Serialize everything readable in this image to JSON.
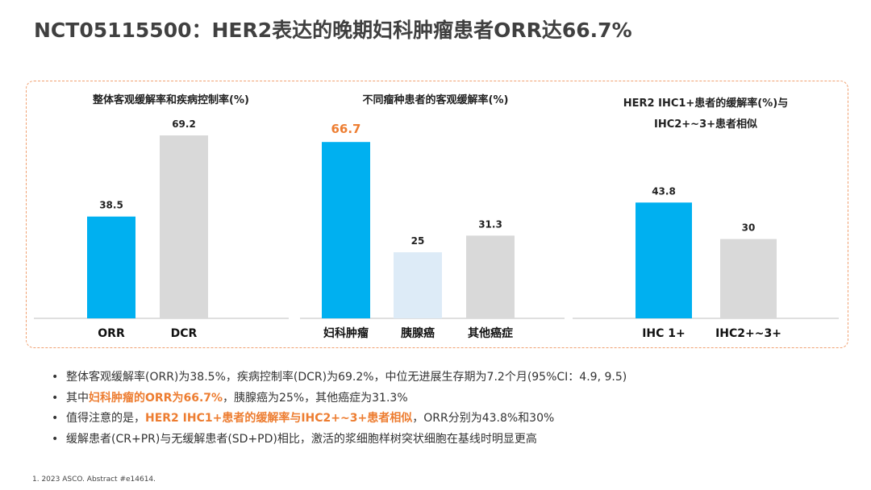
{
  "slide": {
    "title": "NCT05115500：HER2表达的晚期妇科肿瘤患者ORR达66.7%"
  },
  "colors": {
    "blue": "#00b0f0",
    "gray": "#d9d9d9",
    "light_blue": "#ddebf7",
    "orange": "#ed7d31",
    "frame": "#f0a070"
  },
  "chart_data": [
    {
      "type": "bar",
      "title": "整体客观缓解率和疾病控制率(%)",
      "categories": [
        "ORR",
        "DCR"
      ],
      "values": [
        38.5,
        69.2
      ],
      "value_labels": [
        "38.5",
        "69.2"
      ],
      "bar_colors": [
        "#00b0f0",
        "#d9d9d9"
      ],
      "ylim": [
        0,
        75
      ]
    },
    {
      "type": "bar",
      "title": "不同瘤种患者的客观缓解率(%)",
      "categories": [
        "妇科肿瘤",
        "胰腺癌",
        "其他癌症"
      ],
      "values": [
        66.7,
        25,
        31.3
      ],
      "value_labels": [
        "66.7",
        "25",
        "31.3"
      ],
      "bar_colors": [
        "#00b0f0",
        "#ddebf7",
        "#d9d9d9"
      ],
      "highlight_index": 0,
      "ylim": [
        0,
        75
      ]
    },
    {
      "type": "bar",
      "title": [
        "HER2 IHC1+患者的缓解率(%)与",
        "IHC2+~3+患者相似"
      ],
      "categories": [
        "IHC 1+",
        "IHC2+~3+"
      ],
      "values": [
        43.8,
        30
      ],
      "value_labels": [
        "43.8",
        "30"
      ],
      "bar_colors": [
        "#00b0f0",
        "#d9d9d9"
      ],
      "ylim": [
        0,
        75
      ]
    }
  ],
  "bullets": [
    {
      "parts": [
        {
          "text": "整体客观缓解率(ORR)为38.5%，疾病控制率(DCR)为69.2%，中位无进展生存期为7.2个月(95%CI：4.9, 9.5)",
          "hl": false
        }
      ]
    },
    {
      "parts": [
        {
          "text": "其中",
          "hl": false
        },
        {
          "text": "妇科肿瘤的ORR为66.7%",
          "hl": true
        },
        {
          "text": "，胰腺癌为25%，其他癌症为31.3%",
          "hl": false
        }
      ]
    },
    {
      "parts": [
        {
          "text": "值得注意的是，",
          "hl": false
        },
        {
          "text": "HER2  IHC1+患者的缓解率与IHC2+~3+患者相似",
          "hl": true
        },
        {
          "text": "，ORR分别为43.8%和30%",
          "hl": false
        }
      ]
    },
    {
      "parts": [
        {
          "text": "缓解患者(CR+PR)与无缓解患者(SD+PD)相比，激活的浆细胞样树突状细胞在基线时明显更高",
          "hl": false
        }
      ]
    }
  ],
  "footnote": "1.   2023 ASCO. Abstract #e14614."
}
